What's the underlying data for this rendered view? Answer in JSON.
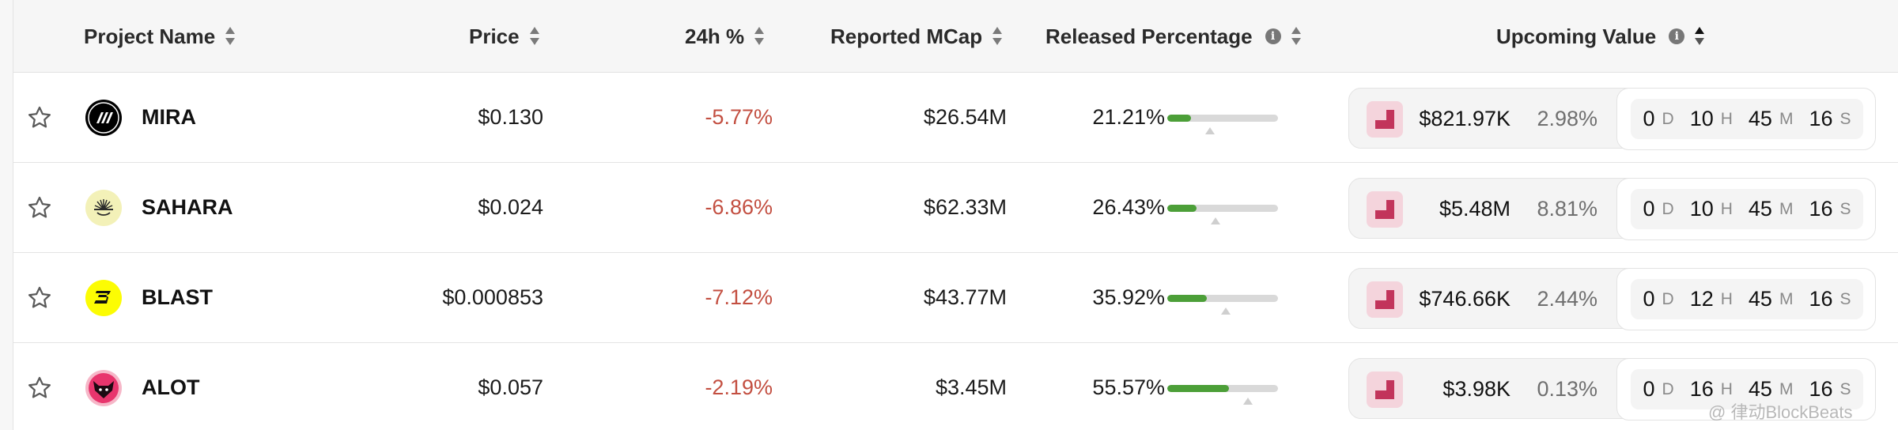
{
  "header": {
    "project_name": "Project Name",
    "price": "Price",
    "change_24h": "24h %",
    "reported_mcap": "Reported MCap",
    "released_percentage": "Released Percentage",
    "upcoming_value": "Upcoming Value",
    "info_glyph": "i"
  },
  "rows": [
    {
      "name": "MIRA",
      "logo_icon": "mira-logo",
      "logo_bg": "#000000",
      "price": "$0.130",
      "change": "-5.77%",
      "mcap": "$26.54M",
      "released": "21.21%",
      "released_fraction": 0.2121,
      "upcoming_value": "$821.97K",
      "upcoming_pct": "2.98%",
      "timer": {
        "d": "0",
        "h": "10",
        "m": "45",
        "s": "16"
      }
    },
    {
      "name": "SAHARA",
      "logo_icon": "sahara-logo",
      "logo_bg": "#f3f1b8",
      "price": "$0.024",
      "change": "-6.86%",
      "mcap": "$62.33M",
      "released": "26.43%",
      "released_fraction": 0.2643,
      "upcoming_value": "$5.48M",
      "upcoming_pct": "8.81%",
      "timer": {
        "d": "0",
        "h": "10",
        "m": "45",
        "s": "16"
      }
    },
    {
      "name": "BLAST",
      "logo_icon": "blast-logo",
      "logo_bg": "#fcfc03",
      "price": "$0.000853",
      "change": "-7.12%",
      "mcap": "$43.77M",
      "released": "35.92%",
      "released_fraction": 0.3592,
      "upcoming_value": "$746.66K",
      "upcoming_pct": "2.44%",
      "timer": {
        "d": "0",
        "h": "12",
        "m": "45",
        "s": "16"
      }
    },
    {
      "name": "ALOT",
      "logo_icon": "alot-logo",
      "logo_bg": "#e8356d",
      "price": "$0.057",
      "change": "-2.19%",
      "mcap": "$3.45M",
      "released": "55.57%",
      "released_fraction": 0.5557,
      "upcoming_value": "$3.98K",
      "upcoming_pct": "0.13%",
      "timer": {
        "d": "0",
        "h": "16",
        "m": "45",
        "s": "16"
      }
    }
  ],
  "timer_units": {
    "d": "D",
    "h": "H",
    "m": "M",
    "s": "S"
  },
  "colors": {
    "negative": "#c34f41",
    "progress": "#4c9f38",
    "token_badge": "#c2345b"
  },
  "watermark": "@ 律动BlockBeats"
}
